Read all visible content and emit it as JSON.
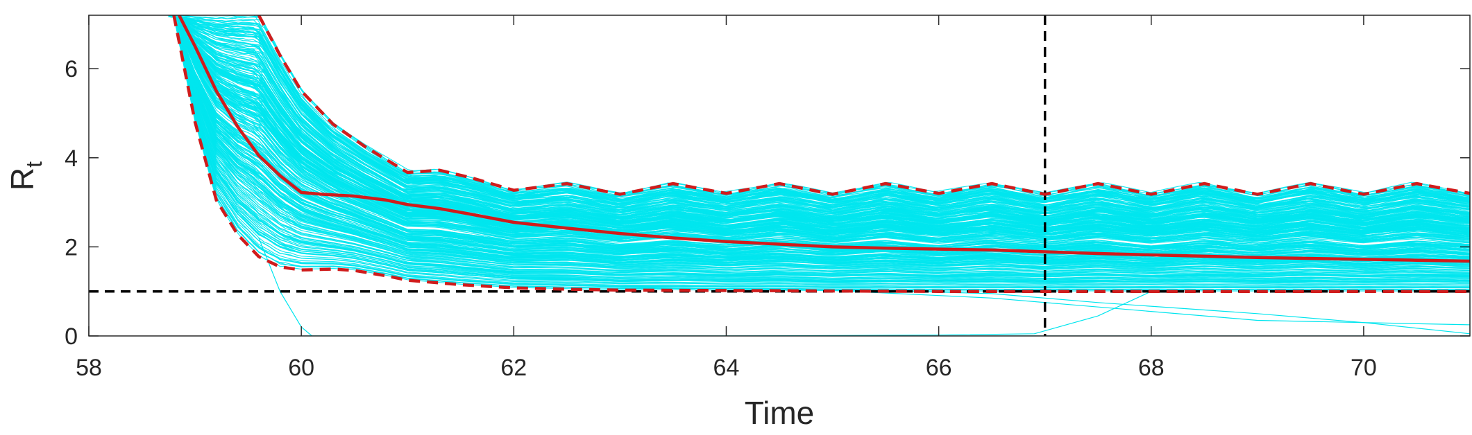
{
  "chart_data": {
    "type": "line",
    "title": "",
    "xlabel": "Time",
    "ylabel_main": "R",
    "ylabel_sub": "t",
    "xlim": [
      58,
      71
    ],
    "ylim": [
      0,
      7.2
    ],
    "x_ticks": [
      58,
      60,
      62,
      64,
      66,
      68,
      70
    ],
    "x_tick_labels": [
      "58",
      "60",
      "62",
      "64",
      "66",
      "68",
      "70"
    ],
    "y_ticks": [
      0,
      2,
      4,
      6
    ],
    "y_tick_labels": [
      "0",
      "2",
      "4",
      "6"
    ],
    "grid": false,
    "legend": "none",
    "reference_lines": {
      "horizontal_y": 1,
      "vertical_x": 67
    },
    "series": [
      {
        "role": "sample-trajectories",
        "style": "thin",
        "count": 300,
        "color": "#00e5ee"
      },
      {
        "role": "median",
        "style": "solid",
        "color": "#d01c1c",
        "x": [
          58.85,
          59.0,
          59.2,
          59.4,
          59.6,
          59.8,
          60.0,
          60.2,
          60.5,
          60.8,
          61.0,
          61.3,
          61.6,
          62.0,
          62.5,
          63.0,
          63.5,
          64.0,
          64.5,
          65.0,
          65.5,
          66.0,
          66.5,
          67.0,
          67.5,
          68.0,
          68.5,
          69.0,
          69.5,
          70.0,
          70.5,
          71.0
        ],
        "y": [
          7.2,
          6.5,
          5.5,
          4.7,
          4.05,
          3.6,
          3.22,
          3.18,
          3.14,
          3.05,
          2.95,
          2.86,
          2.73,
          2.55,
          2.42,
          2.3,
          2.2,
          2.12,
          2.06,
          2.0,
          1.97,
          1.95,
          1.93,
          1.89,
          1.85,
          1.82,
          1.79,
          1.76,
          1.74,
          1.72,
          1.7,
          1.68
        ]
      },
      {
        "role": "upper-bound",
        "style": "dashed",
        "color": "#d01c1c",
        "x": [
          59.6,
          59.8,
          60.0,
          60.3,
          60.6,
          61.0,
          61.3,
          61.6,
          62.0,
          62.5,
          63.0,
          63.5,
          64.0,
          64.5,
          65.0,
          65.5,
          66.0,
          66.5,
          67.0,
          67.5,
          68.0,
          68.5,
          69.0,
          69.5,
          70.0,
          70.5,
          71.0
        ],
        "y": [
          7.2,
          6.3,
          5.5,
          4.75,
          4.25,
          3.67,
          3.72,
          3.55,
          3.27,
          3.42,
          3.18,
          3.42,
          3.2,
          3.42,
          3.18,
          3.42,
          3.2,
          3.42,
          3.18,
          3.42,
          3.18,
          3.42,
          3.18,
          3.42,
          3.18,
          3.42,
          3.2
        ]
      },
      {
        "role": "lower-bound",
        "style": "dashed",
        "color": "#d01c1c",
        "x": [
          58.8,
          59.0,
          59.2,
          59.4,
          59.6,
          59.8,
          60.0,
          60.3,
          60.5,
          60.8,
          61.0,
          61.5,
          62.0,
          62.5,
          63.0,
          64.0,
          65.0,
          66.0,
          67.0,
          68.0,
          69.0,
          70.0,
          71.0
        ],
        "y": [
          7.2,
          4.8,
          3.05,
          2.28,
          1.78,
          1.55,
          1.48,
          1.5,
          1.47,
          1.35,
          1.25,
          1.15,
          1.08,
          1.05,
          1.03,
          1.02,
          1.01,
          1.0,
          1.0,
          1.0,
          1.0,
          1.0,
          1.0
        ]
      }
    ]
  }
}
